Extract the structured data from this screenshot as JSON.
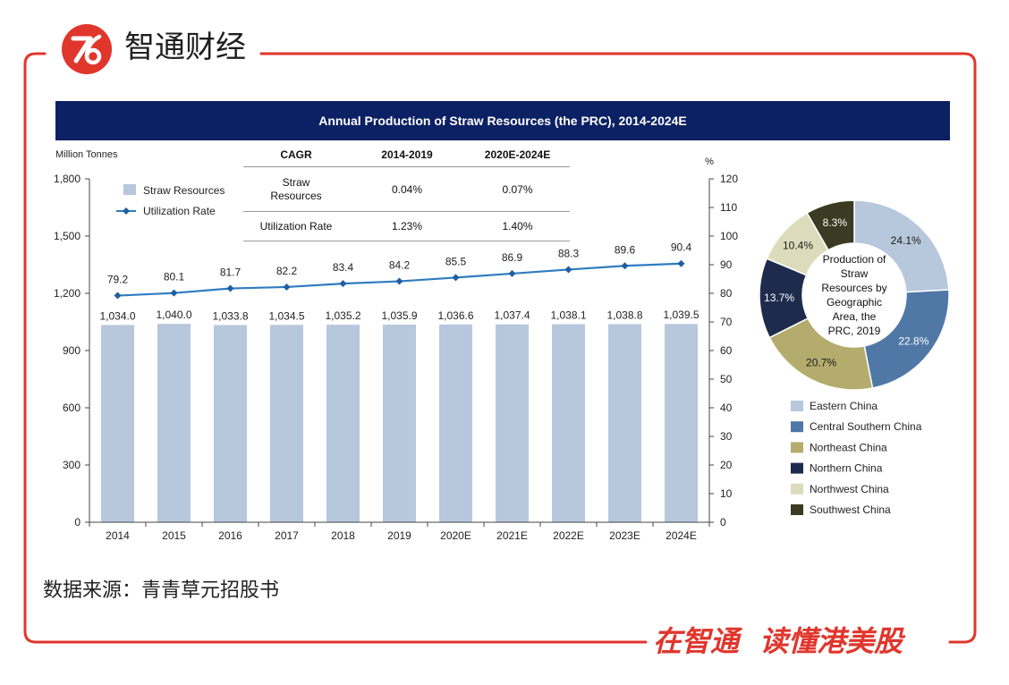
{
  "brand": {
    "logo_text": "智通财经",
    "logo_icon": "zhitong-logo-icon",
    "slogan": "在智通 读懂港美股",
    "accent_color": "#e0362c"
  },
  "source_note": "数据来源：青青草元招股书",
  "chart_data": [
    {
      "type": "bar",
      "secondary_type": "line",
      "title": "Annual Production of Straw Resources (the PRC), 2014-2024E",
      "title_bg_color": "#0c2064",
      "xlabel": "",
      "ylabel_left": "Million Tonnes",
      "ylabel_right": "%",
      "categories": [
        "2014",
        "2015",
        "2016",
        "2017",
        "2018",
        "2019",
        "2020E",
        "2021E",
        "2022E",
        "2023E",
        "2024E"
      ],
      "ylim_left": [
        0,
        1800
      ],
      "yticks_left": [
        0,
        300,
        600,
        900,
        1200,
        1500,
        1800
      ],
      "ytick_labels_left": [
        "0",
        "300",
        "600",
        "900",
        "1,200",
        "1,500",
        "1,800"
      ],
      "ylim_right": [
        0,
        120
      ],
      "yticks_right": [
        0,
        10,
        20,
        30,
        40,
        50,
        60,
        70,
        80,
        90,
        100,
        110,
        120
      ],
      "ytick_labels_right": [
        "0",
        "10",
        "20",
        "30",
        "40",
        "50",
        "60",
        "70",
        "80",
        "90",
        "100",
        "110",
        "120"
      ],
      "grid": false,
      "legend_position": "top-left",
      "series": [
        {
          "name": "Straw Resources",
          "type": "bar",
          "axis": "left",
          "color": "#b7c7dc",
          "values": [
            1034.0,
            1040.0,
            1033.8,
            1034.5,
            1035.2,
            1035.9,
            1036.6,
            1037.4,
            1038.1,
            1038.8,
            1039.5
          ],
          "labels": [
            "1,034.0",
            "1,040.0",
            "1,033.8",
            "1,034.5",
            "1,035.2",
            "1,035.9",
            "1,036.6",
            "1,037.4",
            "1,038.1",
            "1,038.8",
            "1,039.5"
          ]
        },
        {
          "name": "Utilization Rate",
          "type": "line",
          "axis": "right",
          "color": "#2e7cc0",
          "marker_color": "#1f5fa0",
          "values": [
            79.2,
            80.1,
            81.7,
            82.2,
            83.4,
            84.2,
            85.5,
            86.9,
            88.3,
            89.6,
            90.4
          ],
          "labels": [
            "79.2",
            "80.1",
            "81.7",
            "82.2",
            "83.4",
            "84.2",
            "85.5",
            "86.9",
            "88.3",
            "89.6",
            "90.4"
          ]
        }
      ],
      "cagr_table": {
        "headers": [
          "CAGR",
          "2014-2019",
          "2020E-2024E"
        ],
        "rows": [
          {
            "label": "Straw Resources",
            "cells": [
              "0.04%",
              "0.07%"
            ]
          },
          {
            "label": "Utilization Rate",
            "cells": [
              "1.23%",
              "1.40%"
            ]
          }
        ]
      }
    },
    {
      "type": "pie",
      "subtype": "donut",
      "title": "Production of\nStraw\nResources by\nGeographic\nArea, the\nPRC, 2019",
      "legend_position": "bottom",
      "categories": [
        "Eastern China",
        "Central Southern China",
        "Northeast China",
        "Northern China",
        "Northwest China",
        "Southwest China"
      ],
      "values": [
        24.1,
        22.8,
        20.7,
        13.7,
        10.4,
        8.3
      ],
      "labels": [
        "24.1%",
        "22.8%",
        "20.7%",
        "13.7%",
        "10.4%",
        "8.3%"
      ],
      "colors": [
        "#b7c7dc",
        "#4f78a6",
        "#b3ac6d",
        "#1e2b4d",
        "#dcdcbd",
        "#3b3a22"
      ],
      "label_colors": [
        "#1a1a1a",
        "#ffffff",
        "#1a1a1a",
        "#ffffff",
        "#1a1a1a",
        "#ffffff"
      ]
    }
  ]
}
